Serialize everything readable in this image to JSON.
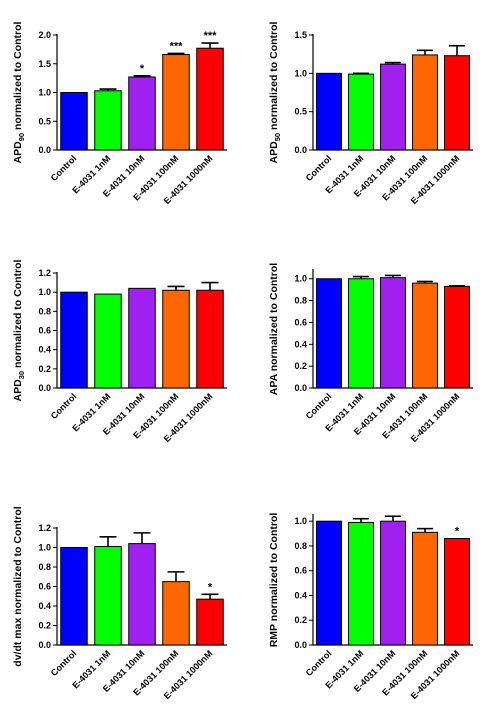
{
  "chart_data": [
    {
      "type": "bar",
      "ylabel": "APD90 normalized to Control",
      "ylabel_main": "APD",
      "ylabel_sub": "90",
      "ylabel_rest": " normalized to Control",
      "categories": [
        "Control",
        "E-4031 1nM",
        "E-4031 10nM",
        "E-4031 100nM",
        "E-4031 1000nM"
      ],
      "values": [
        1.0,
        1.03,
        1.27,
        1.66,
        1.77
      ],
      "errors": [
        0.0,
        0.03,
        0.02,
        0.02,
        0.09
      ],
      "significance": [
        "",
        "",
        "*",
        "***",
        "***"
      ],
      "ylim": [
        0,
        2.0
      ],
      "yticks": [
        "0.0",
        "0.5",
        "1.0",
        "1.5",
        "2.0"
      ],
      "colors": [
        "#0000ff",
        "#00ff00",
        "#a020f0",
        "#ff6600",
        "#ff0000"
      ]
    },
    {
      "type": "bar",
      "ylabel": "APD50 normalized to Control",
      "ylabel_main": "APD",
      "ylabel_sub": "50",
      "ylabel_rest": " normalized to Control",
      "categories": [
        "Control",
        "E-4031 1nM",
        "E-4031 10nM",
        "E-4031 100nM",
        "E-4031 1000nM"
      ],
      "values": [
        1.0,
        0.99,
        1.12,
        1.24,
        1.23
      ],
      "errors": [
        0.0,
        0.01,
        0.02,
        0.06,
        0.13
      ],
      "significance": [
        "",
        "",
        "",
        "",
        ""
      ],
      "ylim": [
        0,
        1.5
      ],
      "yticks": [
        "0.0",
        "0.5",
        "1.0",
        "1.5"
      ],
      "colors": [
        "#0000ff",
        "#00ff00",
        "#a020f0",
        "#ff6600",
        "#ff0000"
      ]
    },
    {
      "type": "bar",
      "ylabel": "APD30 normalized to Control",
      "ylabel_main": "APD",
      "ylabel_sub": "30",
      "ylabel_rest": " normalized to Control",
      "categories": [
        "Control",
        "E-4031 1nM",
        "E-4031 10nM",
        "E-4031 100nM",
        "E-4031 1000nM"
      ],
      "values": [
        1.0,
        0.98,
        1.04,
        1.02,
        1.02
      ],
      "errors": [
        0.0,
        0.0,
        0.0,
        0.04,
        0.08
      ],
      "significance": [
        "",
        "",
        "",
        "",
        ""
      ],
      "ylim": [
        0,
        1.2
      ],
      "yticks": [
        "0.0",
        "0.2",
        "0.4",
        "0.6",
        "0.8",
        "1.0",
        "1.2"
      ],
      "colors": [
        "#0000ff",
        "#00ff00",
        "#a020f0",
        "#ff6600",
        "#ff0000"
      ]
    },
    {
      "type": "bar",
      "ylabel": "APA normalized to Control",
      "ylabel_main": "APA normalized to Control",
      "ylabel_sub": "",
      "ylabel_rest": "",
      "categories": [
        "Control",
        "E-4031 1nM",
        "E-4031 10nM",
        "E-4031 100nM",
        "E-4031 1000nM"
      ],
      "values": [
        1.0,
        1.0,
        1.01,
        0.96,
        0.93
      ],
      "errors": [
        0.0,
        0.02,
        0.02,
        0.015,
        0.005
      ],
      "significance": [
        "",
        "",
        "",
        "",
        ""
      ],
      "ylim": [
        0,
        1.08
      ],
      "yticks": [
        "0.0",
        "0.2",
        "0.4",
        "0.6",
        "0.8",
        "1.0"
      ],
      "colors": [
        "#0000ff",
        "#00ff00",
        "#a020f0",
        "#ff6600",
        "#ff0000"
      ]
    },
    {
      "type": "bar",
      "ylabel": "dv/dt max normalized to Control",
      "ylabel_main": "dv/dt max normalized to Control",
      "ylabel_sub": "",
      "ylabel_rest": "",
      "categories": [
        "Control",
        "E-4031 1nM",
        "E-4031 10nM",
        "E-4031 100nM",
        "E-4031 1000nM"
      ],
      "values": [
        1.0,
        1.01,
        1.04,
        0.65,
        0.47
      ],
      "errors": [
        0.0,
        0.1,
        0.11,
        0.1,
        0.05
      ],
      "significance": [
        "",
        "",
        "",
        "",
        "*"
      ],
      "ylim": [
        0,
        1.2
      ],
      "yticks": [
        "0.0",
        "0.2",
        "0.4",
        "0.6",
        "0.8",
        "1.0",
        "1.2"
      ],
      "colors": [
        "#0000ff",
        "#00ff00",
        "#a020f0",
        "#ff6600",
        "#ff0000"
      ]
    },
    {
      "type": "bar",
      "ylabel": "RMP normalized to Control",
      "ylabel_main": "RMP normalized to Control",
      "ylabel_sub": "",
      "ylabel_rest": "",
      "categories": [
        "Control",
        "E-4031 1nM",
        "E-4031 10nM",
        "E-4031 100nM",
        "E-4031 1000nM"
      ],
      "values": [
        1.0,
        0.99,
        1.0,
        0.91,
        0.86
      ],
      "errors": [
        0.0,
        0.03,
        0.04,
        0.03,
        0.0
      ],
      "significance": [
        "",
        "",
        "",
        "",
        "*"
      ],
      "ylim": [
        0,
        1.05
      ],
      "yticks": [
        "0.0",
        "0.2",
        "0.4",
        "0.6",
        "0.8",
        "1.0"
      ],
      "colors": [
        "#0000ff",
        "#00ff00",
        "#a020f0",
        "#ff6600",
        "#ff0000"
      ]
    }
  ]
}
